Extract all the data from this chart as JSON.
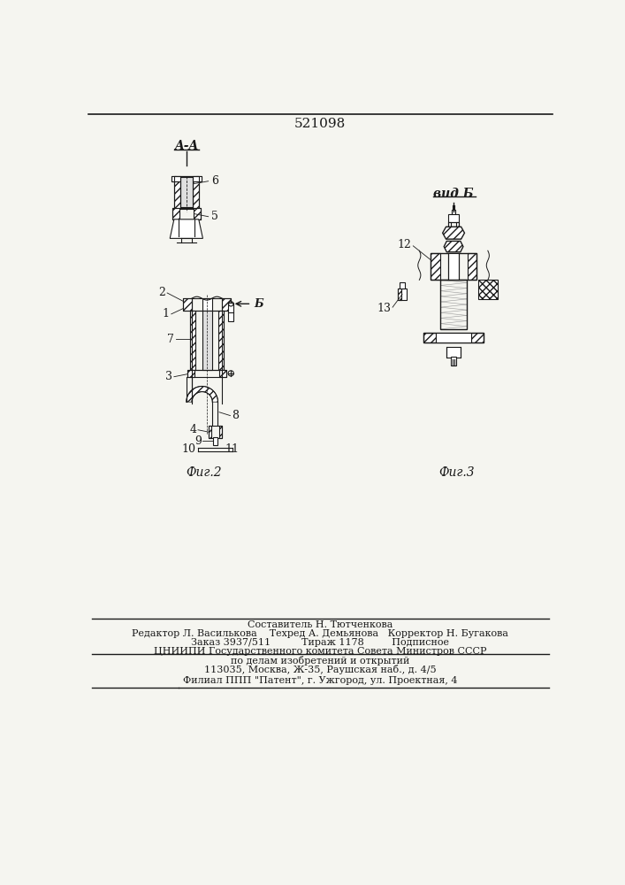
{
  "title": "521098",
  "background_color": "#f5f5f0",
  "line_color": "#1a1a1a",
  "text_color": "#1a1a1a",
  "footer_lines": [
    "Составитель Н. Тютченкова",
    "Редактор Л. Василькова    Техред А. Демьянова   Корректор Н. Бугакова",
    "Заказ 3937/511          Тираж 1178         Подписное",
    "ЦНИИПИ Государственного комитета Совета Министров СССР",
    "по делам изобретений и открытий",
    "113035, Москва, Ж-35, Раушская наб., д. 4/5",
    "Филиал ППП \"Патент\", г. Ужгород, ул. Проектная, 4"
  ],
  "label_AA": "A-A",
  "label_vidB": "вид Б",
  "label_fig2": "Фиг.2",
  "label_fig3": "Фиг.3",
  "label_B": "Б"
}
